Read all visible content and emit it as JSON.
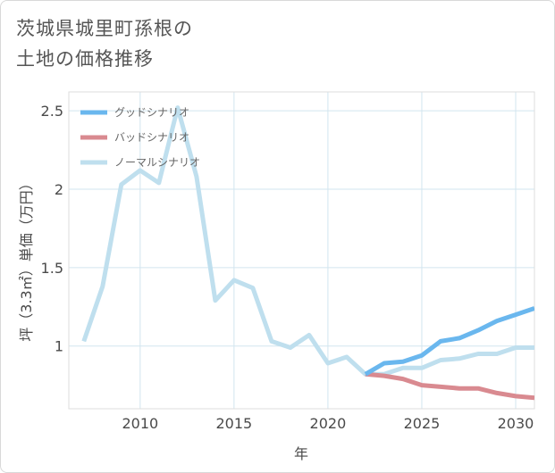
{
  "title_line1": "茨城県城里町孫根の",
  "title_line2": "土地の価格推移",
  "chart_data": {
    "type": "line",
    "xlabel": "年",
    "ylabel": "坪（3.3㎡）単価（万円）",
    "xlim": [
      2006.2,
      2031
    ],
    "ylim": [
      0.6,
      2.62
    ],
    "xticks": [
      2010,
      2015,
      2020,
      2025,
      2030
    ],
    "yticks": [
      1,
      1.5,
      2,
      2.5
    ],
    "ytick_labels": [
      "1",
      "1.5",
      "2",
      "2.5"
    ],
    "grid": true,
    "legend_position": "top-left",
    "series": [
      {
        "name": "グッドシナリオ",
        "color": "#6ab7ee",
        "x": [
          2022,
          2023,
          2024,
          2025,
          2026,
          2027,
          2028,
          2029,
          2030,
          2031
        ],
        "y": [
          0.82,
          0.89,
          0.9,
          0.94,
          1.03,
          1.05,
          1.1,
          1.16,
          1.2,
          1.24
        ]
      },
      {
        "name": "バッドシナリオ",
        "color": "#d98a90",
        "x": [
          2022,
          2023,
          2024,
          2025,
          2026,
          2027,
          2028,
          2029,
          2030,
          2031
        ],
        "y": [
          0.82,
          0.81,
          0.79,
          0.75,
          0.74,
          0.73,
          0.73,
          0.7,
          0.68,
          0.67
        ]
      },
      {
        "name": "ノーマルシナリオ",
        "color": "#bfdfee",
        "x": [
          2007,
          2008,
          2009,
          2010,
          2011,
          2012,
          2013,
          2014,
          2015,
          2016,
          2017,
          2018,
          2019,
          2020,
          2021,
          2022,
          2023,
          2024,
          2025,
          2026,
          2027,
          2028,
          2029,
          2030,
          2031
        ],
        "y": [
          1.03,
          1.38,
          2.03,
          2.12,
          2.04,
          2.52,
          2.08,
          1.29,
          1.42,
          1.37,
          1.03,
          0.99,
          1.07,
          0.89,
          0.93,
          0.82,
          0.82,
          0.86,
          0.86,
          0.91,
          0.92,
          0.95,
          0.95,
          0.99,
          0.99
        ]
      }
    ]
  }
}
